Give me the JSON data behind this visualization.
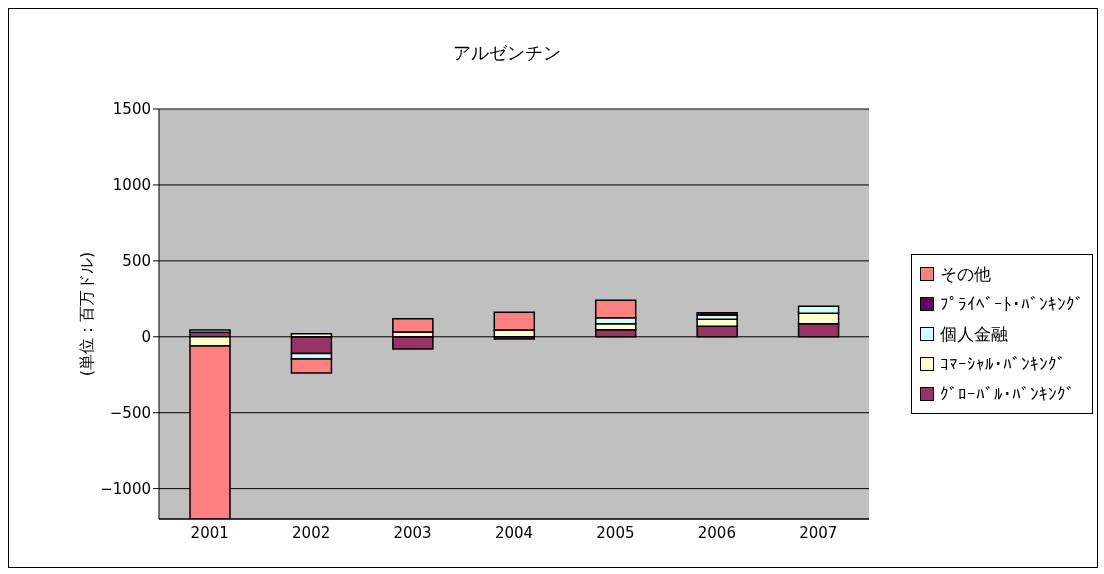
{
  "chart_data": {
    "type": "bar",
    "title": "アルゼンチン",
    "ylabel": "(単位：百万ドル)",
    "stacked": true,
    "categories": [
      "2001",
      "2002",
      "2003",
      "2004",
      "2005",
      "2006",
      "2007"
    ],
    "series": [
      {
        "name": "ｸﾞﾛｰﾊﾞﾙ･ﾊﾞﾝｷﾝｸﾞ",
        "color": "#993366",
        "values": [
          30,
          -110,
          -81,
          -14,
          46,
          70,
          85
        ]
      },
      {
        "name": "ｺﾏｰｼｬﾙ･ﾊﾞﾝｷﾝｸﾞ",
        "color": "#ffffcc",
        "values": [
          -60,
          20,
          31,
          45,
          39,
          46,
          70
        ]
      },
      {
        "name": "個人金融",
        "color": "#ccffff",
        "values": [
          15,
          -37,
          0,
          0,
          41,
          27,
          46
        ]
      },
      {
        "name": "ﾌﾟﾗｲﾍﾞｰﾄ･ﾊﾞﾝｷﾝｸﾞ",
        "color": "#660066",
        "values": [
          0,
          0,
          0,
          0,
          0,
          15,
          0
        ]
      },
      {
        "name": "その他",
        "color": "#ff8080",
        "values": [
          -1150,
          -91,
          87,
          116,
          114,
          0,
          0
        ]
      }
    ],
    "ylim": [
      -1200,
      1500
    ],
    "yticks": [
      -1000,
      -500,
      0,
      500,
      1000,
      1500
    ],
    "grid": "y",
    "legend": "right"
  }
}
